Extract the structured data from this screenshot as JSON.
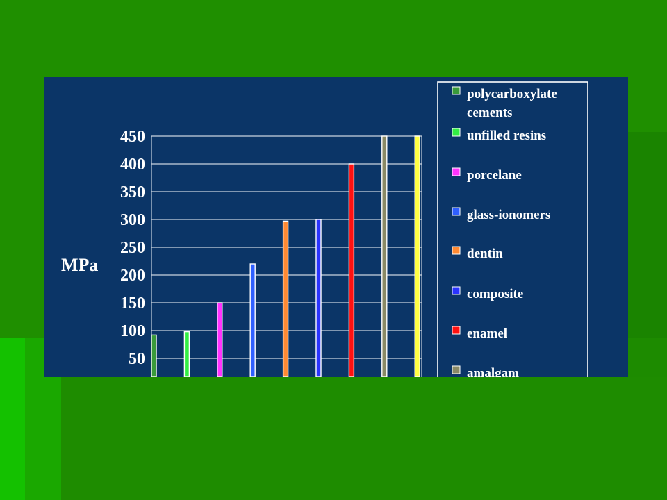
{
  "chart_data": {
    "type": "bar",
    "ylabel": "MPa",
    "ylim": [
      0,
      450
    ],
    "yticks": [
      50,
      100,
      150,
      200,
      250,
      300,
      350,
      400,
      450
    ],
    "categories": [
      "polycarboxylate cements",
      "unfilled resins",
      "porcelane",
      "glass-ionomers",
      "dentin",
      "composite",
      "enamel",
      "amalgam",
      ""
    ],
    "values": [
      92,
      98,
      150,
      220,
      297,
      300,
      400,
      450,
      450
    ],
    "colors": [
      "#3a9a3a",
      "#33ee44",
      "#ff33ff",
      "#2f5fff",
      "#ff8a33",
      "#2a33ff",
      "#ff1111",
      "#8a8a66",
      "#ffff44"
    ],
    "legend": [
      {
        "label": "polycarboxylate cements",
        "color": "#3a9a3a"
      },
      {
        "label": "unfilled resins",
        "color": "#33ee44"
      },
      {
        "label": "porcelane",
        "color": "#ff33ff"
      },
      {
        "label": "glass-ionomers",
        "color": "#2f5fff"
      },
      {
        "label": "dentin",
        "color": "#ff8a33"
      },
      {
        "label": "composite",
        "color": "#2a33ff"
      },
      {
        "label": "enamel",
        "color": "#ff1111"
      },
      {
        "label": "amalgam",
        "color": "#8a8a66"
      }
    ],
    "grid": true,
    "legend_position": "right"
  }
}
